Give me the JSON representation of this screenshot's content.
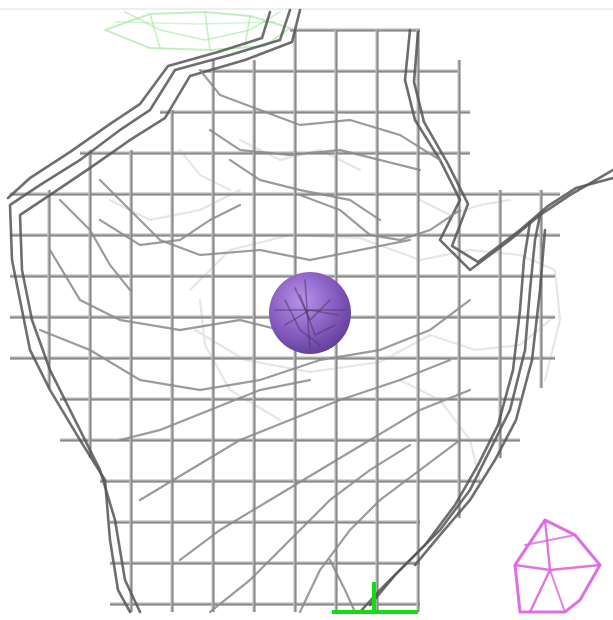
{
  "scene": {
    "background": "#ffffff",
    "top_rule_color": "#dcdcdc",
    "main_mesh": {
      "color": "#8a8a8a",
      "highlight": "#d0d0d0",
      "dark": "#555555"
    },
    "far_mesh_color": "#e3e3e3",
    "green_mesh_color": "#8ee38a",
    "pink_mesh_color": "#dd66dd",
    "axis_color": "#11dd11",
    "atom": {
      "fill": "#8a5fc4",
      "shade": "#5e3e96",
      "highlight": "#b893e8"
    }
  }
}
